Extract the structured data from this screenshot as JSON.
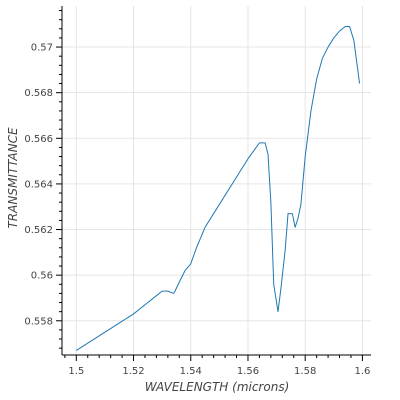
{
  "chart_data": {
    "type": "line",
    "title": "",
    "xlabel": "WAVELENGTH (microns)",
    "ylabel": "TRANSMITTANCE",
    "xlim": [
      1.495,
      1.603
    ],
    "ylim": [
      0.5565,
      0.5718
    ],
    "x_ticks": [
      {
        "value": 1.5,
        "label": "1.5"
      },
      {
        "value": 1.52,
        "label": "1.52"
      },
      {
        "value": 1.54,
        "label": "1.54"
      },
      {
        "value": 1.56,
        "label": "1.56"
      },
      {
        "value": 1.58,
        "label": "1.58"
      },
      {
        "value": 1.6,
        "label": "1.6"
      }
    ],
    "y_ticks": [
      {
        "value": 0.558,
        "label": "0.558"
      },
      {
        "value": 0.56,
        "label": "0.56"
      },
      {
        "value": 0.562,
        "label": "0.562"
      },
      {
        "value": 0.564,
        "label": "0.564"
      },
      {
        "value": 0.566,
        "label": "0.566"
      },
      {
        "value": 0.568,
        "label": "0.568"
      },
      {
        "value": 0.57,
        "label": "0.57"
      }
    ],
    "grid": true,
    "series_color": "#1f77b4",
    "series": [
      {
        "x": [
          1.5,
          1.505,
          1.51,
          1.515,
          1.52,
          1.525,
          1.528,
          1.53,
          1.532,
          1.534,
          1.5345,
          1.536,
          1.538,
          1.54,
          1.542,
          1.545,
          1.55,
          1.555,
          1.56,
          1.564,
          1.566,
          1.567,
          1.568,
          1.569,
          1.5705,
          1.5715,
          1.573,
          1.574,
          1.5755,
          1.5765,
          1.5775,
          1.5785,
          1.58,
          1.582,
          1.584,
          1.586,
          1.588,
          1.59,
          1.592,
          1.594,
          1.5955,
          1.597,
          1.599
        ],
        "y": [
          0.5567,
          0.5571,
          0.5575,
          0.5579,
          0.5583,
          0.5588,
          0.5591,
          0.5593,
          0.5593,
          0.5592,
          0.5593,
          0.5597,
          0.5602,
          0.5605,
          0.5612,
          0.5621,
          0.5631,
          0.5641,
          0.5651,
          0.5658,
          0.5658,
          0.5653,
          0.5632,
          0.5596,
          0.5584,
          0.5594,
          0.5611,
          0.5627,
          0.5627,
          0.5621,
          0.5625,
          0.5631,
          0.5652,
          0.5672,
          0.5686,
          0.5695,
          0.57,
          0.5704,
          0.5707,
          0.5709,
          0.5709,
          0.5703,
          0.5684
        ]
      }
    ]
  }
}
